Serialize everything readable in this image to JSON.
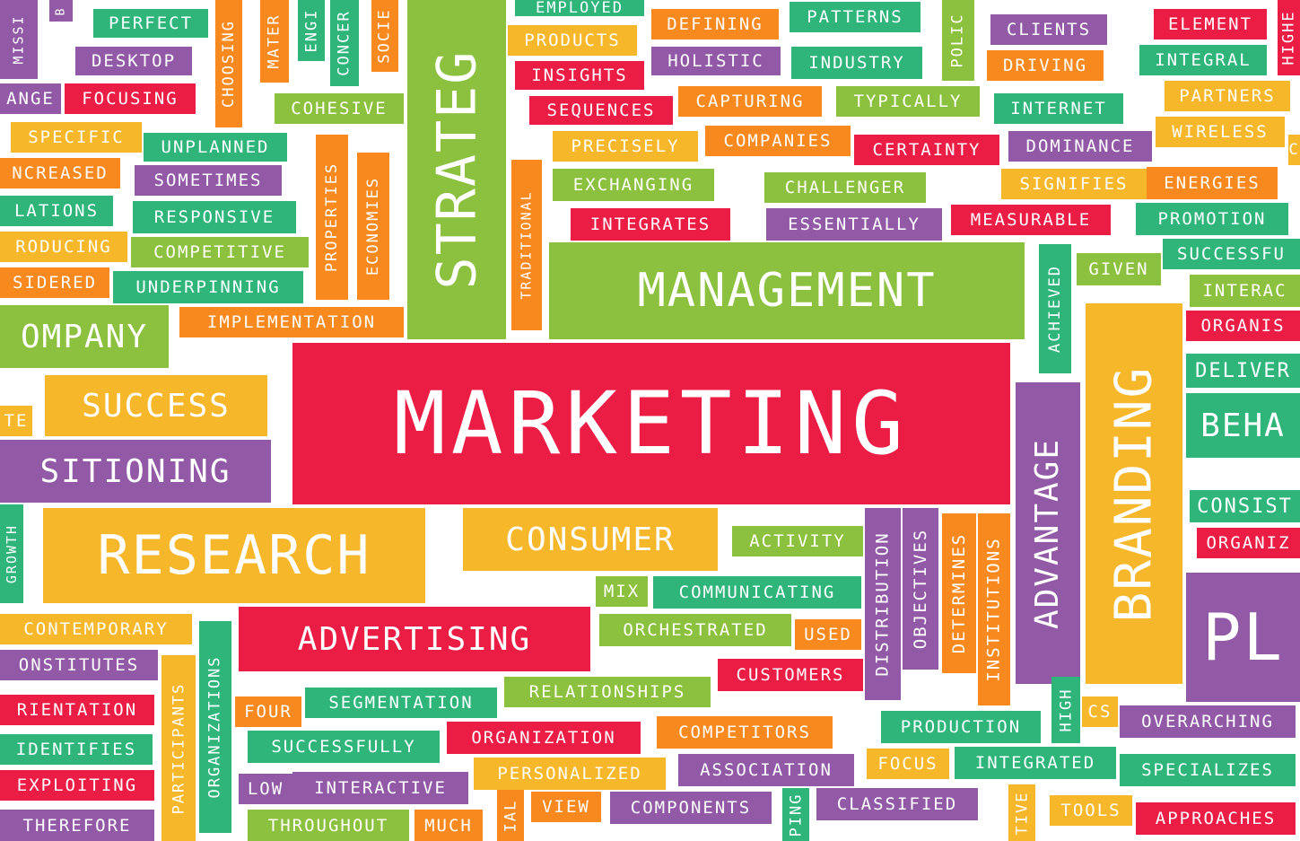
{
  "palette": {
    "red": "#ec1d45",
    "green": "#8bc13f",
    "teal": "#2fb57a",
    "orange": "#f7891f",
    "yellow": "#f6b72a",
    "purple": "#9159a6"
  },
  "words": [
    {
      "text": "MISSI"
    },
    {
      "text": "B"
    },
    {
      "text": "PERFECT"
    },
    {
      "text": "DESKTOP"
    },
    {
      "text": "ANGE"
    },
    {
      "text": "FOCUSING"
    },
    {
      "text": "CHOOSING"
    },
    {
      "text": "MATER"
    },
    {
      "text": "ENGI"
    },
    {
      "text": "CONCER"
    },
    {
      "text": "SOCIE"
    },
    {
      "text": "STRATEG"
    },
    {
      "text": "EMPLOYED"
    },
    {
      "text": "PRODUCTS"
    },
    {
      "text": "INSIGHTS"
    },
    {
      "text": "SEQUENCES"
    },
    {
      "text": "DEFINING"
    },
    {
      "text": "HOLISTIC"
    },
    {
      "text": "PATTERNS"
    },
    {
      "text": "INDUSTRY"
    },
    {
      "text": "POLIC"
    },
    {
      "text": "CLIENTS"
    },
    {
      "text": "DRIVING"
    },
    {
      "text": "ELEMENT"
    },
    {
      "text": "INTEGRAL"
    },
    {
      "text": "HIGHE"
    },
    {
      "text": "COHESIVE"
    },
    {
      "text": "CAPTURING"
    },
    {
      "text": "TYPICALLY"
    },
    {
      "text": "INTERNET"
    },
    {
      "text": "PARTNERS"
    },
    {
      "text": "SPECIFIC"
    },
    {
      "text": "UNPLANNED"
    },
    {
      "text": "PRECISELY"
    },
    {
      "text": "COMPANIES"
    },
    {
      "text": "CERTAINTY"
    },
    {
      "text": "DOMINANCE"
    },
    {
      "text": "WIRELESS"
    },
    {
      "text": "C"
    },
    {
      "text": "NCREASED"
    },
    {
      "text": "SOMETIMES"
    },
    {
      "text": "PROPERTIES"
    },
    {
      "text": "ECONOMIES"
    },
    {
      "text": "TRADITIONAL"
    },
    {
      "text": "EXCHANGING"
    },
    {
      "text": "CHALLENGER"
    },
    {
      "text": "SIGNIFIES"
    },
    {
      "text": "ENERGIES"
    },
    {
      "text": "LATIONS"
    },
    {
      "text": "RESPONSIVE"
    },
    {
      "text": "INTEGRATES"
    },
    {
      "text": "ESSENTIALLY"
    },
    {
      "text": "MEASURABLE"
    },
    {
      "text": "PROMOTION"
    },
    {
      "text": "RODUCING"
    },
    {
      "text": "COMPETITIVE"
    },
    {
      "text": "SUCCESSFU"
    },
    {
      "text": "SIDERED"
    },
    {
      "text": "UNDERPINNING"
    },
    {
      "text": "MANAGEMENT"
    },
    {
      "text": "ACHIEVED"
    },
    {
      "text": "GIVEN"
    },
    {
      "text": "INTERAC"
    },
    {
      "text": "OMPANY"
    },
    {
      "text": "IMPLEMENTATION"
    },
    {
      "text": "BRANDING"
    },
    {
      "text": "ORGANIS"
    },
    {
      "text": "MARKETING"
    },
    {
      "text": "SUCCESS"
    },
    {
      "text": "TE"
    },
    {
      "text": "ADVANTAGE"
    },
    {
      "text": "DELIVER"
    },
    {
      "text": "BEHA"
    },
    {
      "text": "SITIONING"
    },
    {
      "text": "GROWTH"
    },
    {
      "text": "RESEARCH"
    },
    {
      "text": "CONSUMER"
    },
    {
      "text": "ACTIVITY"
    },
    {
      "text": "DISTRIBUTION"
    },
    {
      "text": "OBJECTIVES"
    },
    {
      "text": "DETERMINES"
    },
    {
      "text": "INSTITUTIONS"
    },
    {
      "text": "CONSIST"
    },
    {
      "text": "ORGANIZ"
    },
    {
      "text": "MIX"
    },
    {
      "text": "COMMUNICATING"
    },
    {
      "text": "PL"
    },
    {
      "text": "CONTEMPORARY"
    },
    {
      "text": "ORGANIZATIONS"
    },
    {
      "text": "ADVERTISING"
    },
    {
      "text": "ORCHESTRATED"
    },
    {
      "text": "USED"
    },
    {
      "text": "ONSTITUTES"
    },
    {
      "text": "PARTICIPANTS"
    },
    {
      "text": "CUSTOMERS"
    },
    {
      "text": "RELATIONSHIPS"
    },
    {
      "text": "HIGH"
    },
    {
      "text": "RIENTATION"
    },
    {
      "text": "FOUR"
    },
    {
      "text": "SEGMENTATION"
    },
    {
      "text": "CS"
    },
    {
      "text": "OVERARCHING"
    },
    {
      "text": "PRODUCTION"
    },
    {
      "text": "COMPETITORS"
    },
    {
      "text": "IDENTIFIES"
    },
    {
      "text": "SUCCESSFULLY"
    },
    {
      "text": "ORGANIZATION"
    },
    {
      "text": "FOCUS"
    },
    {
      "text": "INTEGRATED"
    },
    {
      "text": "SPECIALIZES"
    },
    {
      "text": "EXPLOITING"
    },
    {
      "text": "LOW"
    },
    {
      "text": "INTERACTIVE"
    },
    {
      "text": "PERSONALIZED"
    },
    {
      "text": "ASSOCIATION"
    },
    {
      "text": "IAL"
    },
    {
      "text": "VIEW"
    },
    {
      "text": "COMPONENTS"
    },
    {
      "text": "PING"
    },
    {
      "text": "CLASSIFIED"
    },
    {
      "text": "TIVE"
    },
    {
      "text": "TOOLS"
    },
    {
      "text": "APPROACHES"
    },
    {
      "text": "THEREFORE"
    },
    {
      "text": "THROUGHOUT"
    },
    {
      "text": "MUCH"
    }
  ]
}
